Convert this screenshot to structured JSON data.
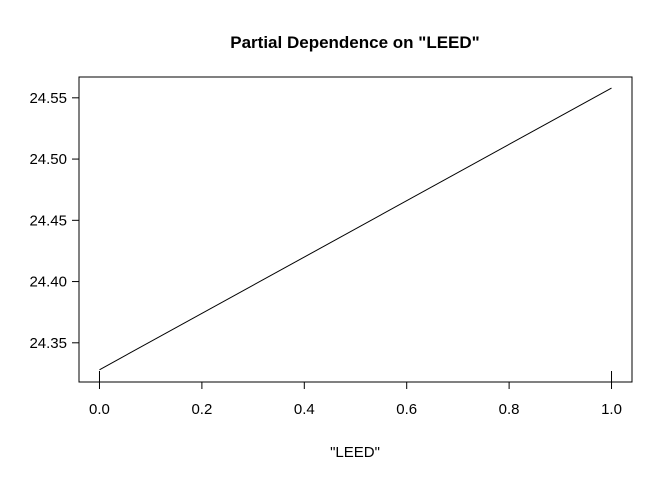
{
  "chart_data": {
    "type": "line",
    "title": "Partial Dependence on \"LEED\"",
    "xlabel": "\"LEED\"",
    "ylabel": "",
    "x": [
      0,
      1
    ],
    "series": [
      {
        "values": [
          24.328,
          24.558
        ]
      }
    ],
    "xlim": [
      -0.04,
      1.04
    ],
    "ylim": [
      24.318,
      24.567
    ],
    "xticks": [
      0.0,
      0.2,
      0.4,
      0.6,
      0.8,
      1.0
    ],
    "xtick_labels": [
      "0.0",
      "0.2",
      "0.4",
      "0.6",
      "0.8",
      "1.0"
    ],
    "yticks": [
      24.35,
      24.4,
      24.45,
      24.5,
      24.55
    ],
    "ytick_labels": [
      "24.35",
      "24.40",
      "24.45",
      "24.50",
      "24.55"
    ],
    "rug": [
      0,
      1
    ],
    "grid": false,
    "legend": "none",
    "line_color": "#000000"
  }
}
